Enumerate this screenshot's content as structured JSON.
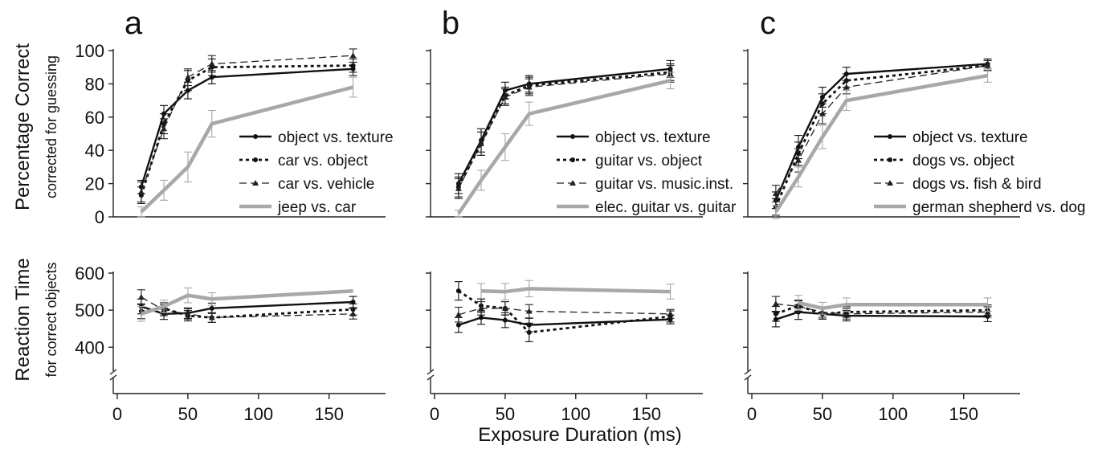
{
  "figure": {
    "xlabel": "Exposure Duration (ms)",
    "top_ylabel": "Percentage Correct",
    "top_ylabel_sub": "corrected for guessing",
    "bottom_ylabel": "Reaction Time",
    "bottom_ylabel_sub": "for correct objects"
  },
  "series_styles": {
    "black_solid": {
      "color": "#111111",
      "dash": "",
      "width": 2.4,
      "marker": "dot"
    },
    "black_dotted": {
      "color": "#111111",
      "dash": "4,4",
      "width": 2.8,
      "marker": "dot"
    },
    "black_dashed": {
      "color": "#222222",
      "dash": "9,5",
      "width": 1.3,
      "marker": "triangle"
    },
    "gray_thick": {
      "color": "#a8a8a8",
      "dash": "",
      "width": 4.5,
      "marker": "none"
    }
  },
  "chart_data": [
    {
      "type": "line",
      "panel": "a",
      "x": [
        17,
        33,
        50,
        67,
        167
      ],
      "xlim": [
        0,
        190
      ],
      "xticks": [
        0,
        50,
        100,
        150
      ],
      "accuracy": {
        "ylim": [
          0,
          100
        ],
        "yticks": [
          0,
          20,
          40,
          60,
          80,
          100
        ],
        "series": [
          {
            "name": "object vs. texture",
            "style": "black_solid",
            "values": [
              18,
              62,
              76,
              84,
              89
            ],
            "err": [
              4,
              5,
              5,
              4,
              4
            ]
          },
          {
            "name": "car vs. object",
            "style": "black_dotted",
            "values": [
              13,
              56,
              82,
              90,
              91
            ],
            "err": [
              5,
              6,
              6,
              5,
              4
            ]
          },
          {
            "name": "car vs. vehicle",
            "style": "black_dashed",
            "values": [
              15,
              53,
              84,
              92,
              97
            ],
            "err": [
              6,
              6,
              5,
              5,
              4
            ]
          },
          {
            "name": "jeep vs. car",
            "style": "gray_thick",
            "values": [
              3,
              16,
              30,
              56,
              78
            ],
            "err": [
              3,
              6,
              9,
              8,
              6
            ]
          }
        ]
      },
      "reaction_time": {
        "ylim": [
          340,
          600
        ],
        "yticks": [
          400,
          500,
          600
        ],
        "series": [
          {
            "style": "black_solid",
            "values": [
              510,
              490,
              492,
              505,
              522
            ],
            "err": [
              20,
              15,
              14,
              14,
              15
            ]
          },
          {
            "style": "black_dotted",
            "values": [
              497,
              505,
              485,
              480,
              502
            ],
            "err": [
              20,
              15,
              14,
              13,
              15
            ]
          },
          {
            "style": "black_dashed",
            "values": [
              535,
              500,
              490,
              480,
              490
            ],
            "err": [
              20,
              15,
              14,
              13,
              14
            ]
          },
          {
            "style": "gray_thick",
            "values": [
              490,
              510,
              540,
              530,
              552
            ],
            "err": [
              20,
              17,
              20,
              17,
              0
            ]
          }
        ]
      }
    },
    {
      "type": "line",
      "panel": "b",
      "x": [
        17,
        33,
        50,
        67,
        167
      ],
      "xlim": [
        0,
        190
      ],
      "xticks": [
        0,
        50,
        100,
        150
      ],
      "accuracy": {
        "ylim": [
          0,
          100
        ],
        "yticks": [
          0,
          20,
          40,
          60,
          80,
          100
        ],
        "series": [
          {
            "name": "object vs. texture",
            "style": "black_solid",
            "values": [
              20,
              46,
              76,
              80,
              89
            ],
            "err": [
              6,
              7,
              5,
              5,
              5
            ]
          },
          {
            "name": "guitar vs. object",
            "style": "black_dotted",
            "values": [
              18,
              44,
              73,
              79,
              87
            ],
            "err": [
              6,
              7,
              5,
              5,
              5
            ]
          },
          {
            "name": "guitar vs. music.inst.",
            "style": "black_dashed",
            "values": [
              17,
              44,
              72,
              78,
              86
            ],
            "err": [
              6,
              7,
              5,
              5,
              5
            ]
          },
          {
            "name": "elec. guitar vs. guitar",
            "style": "gray_thick",
            "values": [
              2,
              22,
              42,
              62,
              82
            ],
            "err": [
              2,
              6,
              8,
              7,
              5
            ]
          }
        ]
      },
      "reaction_time": {
        "ylim": [
          340,
          600
        ],
        "yticks": [
          400,
          500,
          600
        ],
        "series": [
          {
            "style": "black_solid",
            "values": [
              460,
              480,
              473,
              460,
              475
            ],
            "err": [
              20,
              18,
              20,
              18,
              12
            ]
          },
          {
            "style": "black_dotted",
            "values": [
              552,
              512,
              505,
              440,
              483
            ],
            "err": [
              25,
              18,
              18,
              25,
              15
            ]
          },
          {
            "style": "black_dashed",
            "values": [
              488,
              505,
              505,
              497,
              490
            ],
            "err": [
              20,
              18,
              18,
              18,
              12
            ]
          },
          {
            "style": "gray_thick",
            "values": [
              null,
              552,
              550,
              558,
              550
            ],
            "err": [
              0,
              20,
              22,
              22,
              20
            ]
          }
        ]
      }
    },
    {
      "type": "line",
      "panel": "c",
      "x": [
        17,
        33,
        50,
        67,
        167
      ],
      "xlim": [
        0,
        190
      ],
      "xticks": [
        0,
        50,
        100,
        150
      ],
      "accuracy": {
        "ylim": [
          0,
          100
        ],
        "yticks": [
          0,
          20,
          40,
          60,
          80,
          100
        ],
        "series": [
          {
            "name": "object vs. texture",
            "style": "black_solid",
            "values": [
              10,
              42,
              72,
              86,
              92
            ],
            "err": [
              5,
              7,
              6,
              4,
              3
            ]
          },
          {
            "name": "dogs vs. object",
            "style": "black_dotted",
            "values": [
              6,
              38,
              68,
              82,
              91
            ],
            "err": [
              5,
              7,
              6,
              4,
              3
            ]
          },
          {
            "name": "dogs vs. fish & bird",
            "style": "black_dashed",
            "values": [
              14,
              34,
              62,
              78,
              91
            ],
            "err": [
              5,
              7,
              6,
              4,
              3
            ]
          },
          {
            "name": "german shepherd vs. dog",
            "style": "gray_thick",
            "values": [
              3,
              24,
              48,
              70,
              85
            ],
            "err": [
              4,
              6,
              7,
              6,
              4
            ]
          }
        ]
      },
      "reaction_time": {
        "ylim": [
          340,
          600
        ],
        "yticks": [
          400,
          500,
          600
        ],
        "series": [
          {
            "style": "black_solid",
            "values": [
              475,
              495,
              490,
              485,
              483
            ],
            "err": [
              20,
              20,
              14,
              14,
              14
            ]
          },
          {
            "style": "black_dotted",
            "values": [
              490,
              512,
              490,
              495,
              500
            ],
            "err": [
              20,
              15,
              14,
              14,
              14
            ]
          },
          {
            "style": "black_dashed",
            "values": [
              517,
              510,
              495,
              490,
              495
            ],
            "err": [
              20,
              15,
              14,
              14,
              14
            ]
          },
          {
            "style": "gray_thick",
            "values": [
              null,
              520,
              505,
              515,
              515
            ],
            "err": [
              0,
              20,
              16,
              18,
              18
            ]
          }
        ]
      }
    }
  ]
}
